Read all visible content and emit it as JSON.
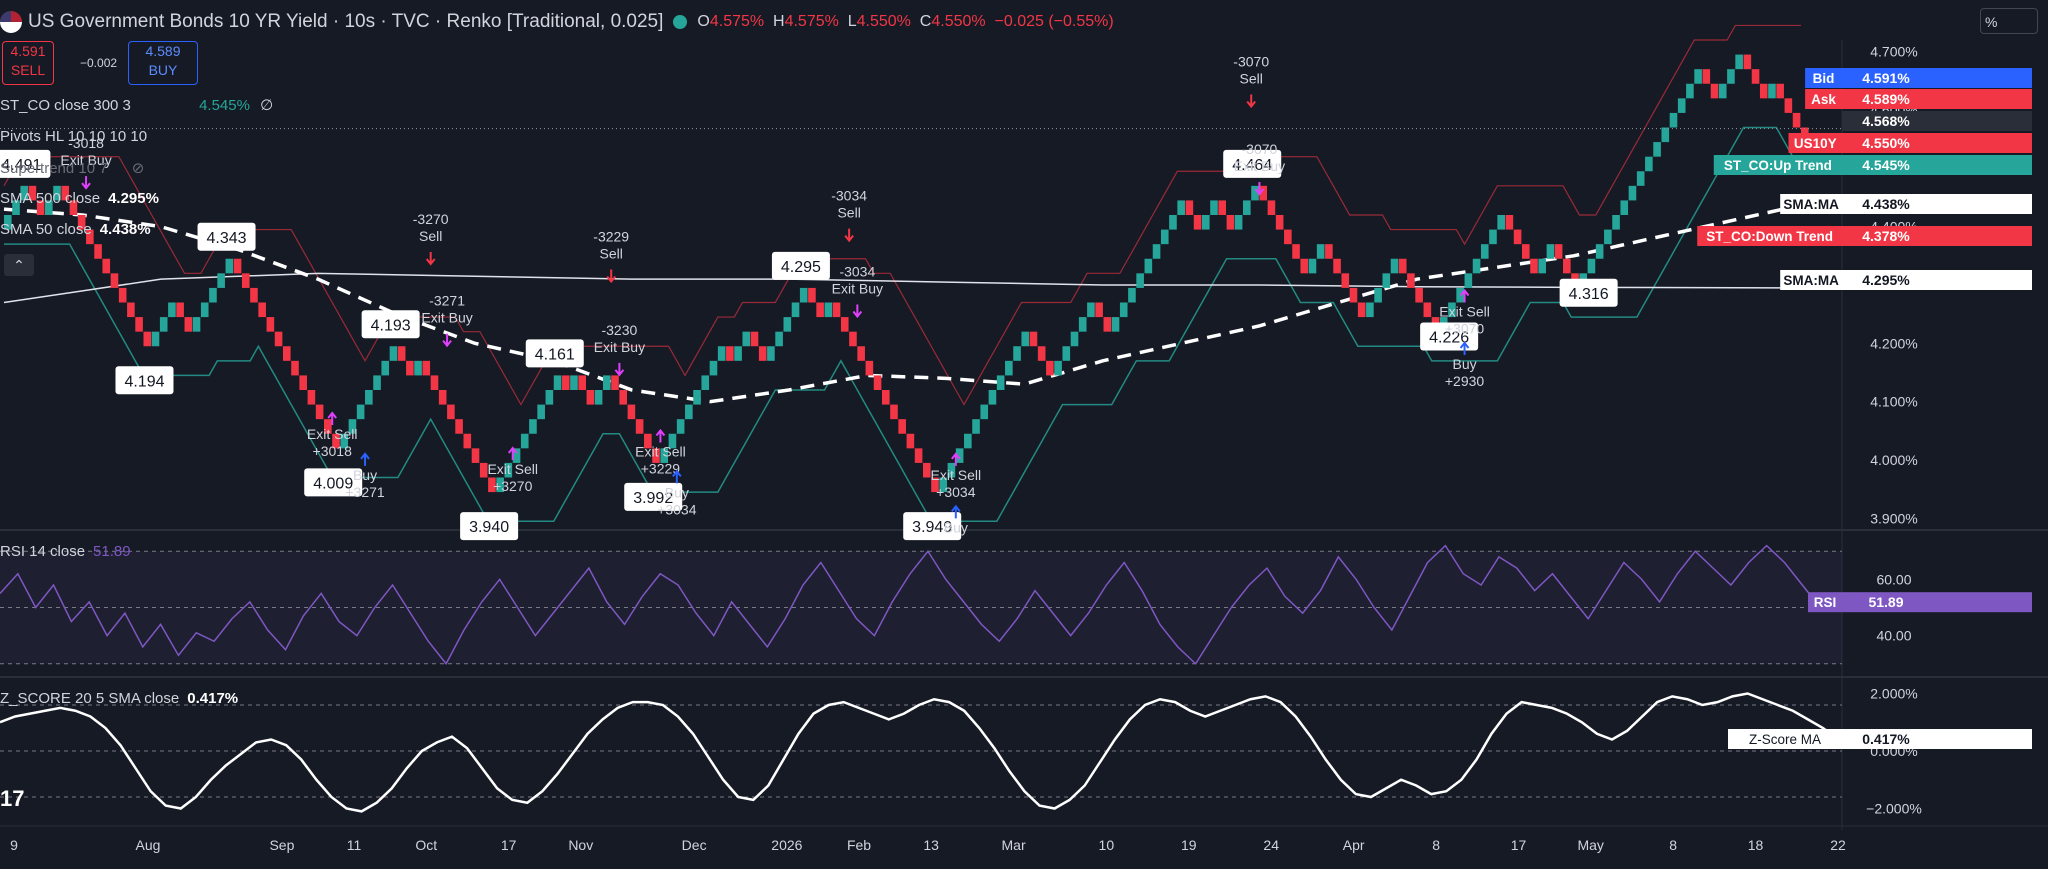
{
  "header": {
    "title": "US Government Bonds 10 YR Yield · 10s · TVC · Renko [Traditional, 0.025]",
    "o_label": "O",
    "o": "4.575%",
    "h_label": "H",
    "h": "4.575%",
    "l_label": "L",
    "l": "4.550%",
    "c_label": "C",
    "c": "4.550%",
    "change": "−0.025 (−0.55%)"
  },
  "trade": {
    "sell_price": "4.591",
    "sell_label": "SELL",
    "spread": "−0.002",
    "buy_price": "4.589",
    "buy_label": "BUY"
  },
  "indicators": {
    "st_co": "ST_CO close 300 3",
    "st_co_value": "4.545%",
    "st_co_extra": "∅",
    "pivots": "Pivots HL 10 10 10 10",
    "supertrend": "Supertrend 10 7",
    "sma500": "SMA 500 close",
    "sma500_value": "4.295%",
    "sma50": "SMA 50 close",
    "sma50_value": "4.438%",
    "rsi": "RSI 14 close",
    "rsi_value": "51.89",
    "zscore": "Z_SCORE 20 5 SMA close",
    "zscore_value": "0.417%"
  },
  "scale_unit": "%",
  "logo": "17",
  "colors": {
    "up": "#26a69a",
    "down": "#f23645",
    "bg": "#161a25",
    "grid": "#2a2e39",
    "rsi": "#7e57c2",
    "blue": "#2962ff",
    "magenta": "#e040fb"
  },
  "chart_data": {
    "type": "renko",
    "main": {
      "ylim": [
        3.88,
        4.72
      ],
      "yticks": [
        "3.900%",
        "4.000%",
        "4.100%",
        "4.200%",
        "4.300%",
        "4.400%",
        "4.500%",
        "4.600%",
        "4.700%"
      ],
      "bricks": [
        4.42,
        4.445,
        4.47,
        4.445,
        4.42,
        4.445,
        4.47,
        4.445,
        4.42,
        4.395,
        4.37,
        4.345,
        4.32,
        4.295,
        4.27,
        4.245,
        4.22,
        4.195,
        4.22,
        4.245,
        4.27,
        4.245,
        4.22,
        4.245,
        4.27,
        4.295,
        4.32,
        4.345,
        4.32,
        4.295,
        4.27,
        4.245,
        4.22,
        4.195,
        4.17,
        4.145,
        4.12,
        4.095,
        4.07,
        4.045,
        4.02,
        4.045,
        4.07,
        4.095,
        4.12,
        4.145,
        4.17,
        4.195,
        4.17,
        4.145,
        4.17,
        4.145,
        4.12,
        4.095,
        4.07,
        4.045,
        4.02,
        3.995,
        3.97,
        3.945,
        3.97,
        3.995,
        4.02,
        4.045,
        4.07,
        4.095,
        4.12,
        4.145,
        4.12,
        4.145,
        4.12,
        4.095,
        4.12,
        4.145,
        4.12,
        4.095,
        4.07,
        4.045,
        4.02,
        3.995,
        4.02,
        4.045,
        4.07,
        4.095,
        4.12,
        4.145,
        4.17,
        4.195,
        4.17,
        4.195,
        4.22,
        4.195,
        4.17,
        4.195,
        4.22,
        4.245,
        4.27,
        4.295,
        4.27,
        4.245,
        4.27,
        4.245,
        4.22,
        4.195,
        4.17,
        4.145,
        4.12,
        4.095,
        4.07,
        4.045,
        4.02,
        3.995,
        3.97,
        3.945,
        3.97,
        3.995,
        4.02,
        4.045,
        4.07,
        4.095,
        4.12,
        4.145,
        4.17,
        4.195,
        4.22,
        4.195,
        4.17,
        4.145,
        4.17,
        4.195,
        4.22,
        4.245,
        4.27,
        4.245,
        4.22,
        4.245,
        4.27,
        4.295,
        4.32,
        4.345,
        4.37,
        4.395,
        4.42,
        4.445,
        4.42,
        4.395,
        4.42,
        4.445,
        4.42,
        4.395,
        4.42,
        4.445,
        4.47,
        4.445,
        4.42,
        4.395,
        4.37,
        4.345,
        4.32,
        4.345,
        4.37,
        4.345,
        4.32,
        4.295,
        4.27,
        4.245,
        4.27,
        4.295,
        4.32,
        4.345,
        4.32,
        4.295,
        4.27,
        4.245,
        4.22,
        4.245,
        4.27,
        4.295,
        4.32,
        4.345,
        4.37,
        4.395,
        4.42,
        4.395,
        4.37,
        4.345,
        4.32,
        4.345,
        4.37,
        4.345,
        4.32,
        4.295,
        4.32,
        4.345,
        4.37,
        4.395,
        4.42,
        4.445,
        4.47,
        4.495,
        4.52,
        4.545,
        4.57,
        4.595,
        4.62,
        4.645,
        4.67,
        4.645,
        4.62,
        4.645,
        4.67,
        4.695,
        4.67,
        4.645,
        4.62,
        4.645,
        4.62,
        4.595,
        4.57,
        4.55
      ],
      "sma500": [
        [
          0,
          4.27
        ],
        [
          10,
          4.29
        ],
        [
          20,
          4.31
        ],
        [
          40,
          4.32
        ],
        [
          60,
          4.315
        ],
        [
          80,
          4.31
        ],
        [
          100,
          4.31
        ],
        [
          120,
          4.305
        ],
        [
          140,
          4.3
        ],
        [
          160,
          4.3
        ],
        [
          180,
          4.297
        ],
        [
          200,
          4.296
        ],
        [
          230,
          4.295
        ]
      ],
      "sma50": [
        [
          0,
          4.43
        ],
        [
          10,
          4.42
        ],
        [
          20,
          4.4
        ],
        [
          30,
          4.36
        ],
        [
          40,
          4.31
        ],
        [
          50,
          4.25
        ],
        [
          60,
          4.2
        ],
        [
          70,
          4.17
        ],
        [
          80,
          4.12
        ],
        [
          90,
          4.1
        ],
        [
          100,
          4.12
        ],
        [
          110,
          4.145
        ],
        [
          120,
          4.14
        ],
        [
          130,
          4.13
        ],
        [
          140,
          4.17
        ],
        [
          150,
          4.2
        ],
        [
          160,
          4.23
        ],
        [
          170,
          4.27
        ],
        [
          180,
          4.31
        ],
        [
          190,
          4.33
        ],
        [
          200,
          4.35
        ],
        [
          210,
          4.38
        ],
        [
          220,
          4.41
        ],
        [
          230,
          4.44
        ]
      ],
      "pivots": [
        {
          "i": 2,
          "v": "4.491",
          "pos": "above"
        },
        {
          "i": 17,
          "v": "4.194",
          "pos": "below"
        },
        {
          "i": 27,
          "v": "4.343",
          "pos": "above"
        },
        {
          "i": 40,
          "v": "4.009",
          "pos": "below"
        },
        {
          "i": 47,
          "v": "4.193",
          "pos": "above"
        },
        {
          "i": 59,
          "v": "3.940",
          "pos": "below"
        },
        {
          "i": 67,
          "v": "4.161",
          "pos": "above"
        },
        {
          "i": 79,
          "v": "3.992",
          "pos": "below"
        },
        {
          "i": 97,
          "v": "4.295",
          "pos": "above"
        },
        {
          "i": 113,
          "v": "3.949",
          "pos": "below"
        },
        {
          "i": 152,
          "v": "4.464",
          "pos": "above"
        },
        {
          "i": 176,
          "v": "4.226",
          "pos": "below"
        },
        {
          "i": 193,
          "v": "4.316",
          "pos": "below"
        }
      ],
      "signals": [
        {
          "i": 10,
          "lines": [
            "-3018",
            "Exit Buy"
          ],
          "side": "top",
          "v": 4.49
        },
        {
          "i": 40,
          "lines": [
            "Exit Sell",
            "+3018"
          ],
          "side": "bottom",
          "v": 4.06
        },
        {
          "i": 44,
          "lines": [
            "Buy",
            "+3271"
          ],
          "side": "bottom",
          "v": 3.99
        },
        {
          "i": 52,
          "lines": [
            "-3270",
            "Sell"
          ],
          "side": "top",
          "v": 4.36
        },
        {
          "i": 54,
          "lines": [
            "-3271",
            "Exit Buy"
          ],
          "side": "top",
          "v": 4.22
        },
        {
          "i": 62,
          "lines": [
            "Exit Sell",
            "+3270"
          ],
          "side": "bottom",
          "v": 4.0
        },
        {
          "i": 74,
          "lines": [
            "-3229",
            "Sell"
          ],
          "side": "top",
          "v": 4.33
        },
        {
          "i": 75,
          "lines": [
            "-3230",
            "Exit Buy"
          ],
          "side": "top",
          "v": 4.17
        },
        {
          "i": 80,
          "lines": [
            "Exit Sell",
            "+3229"
          ],
          "side": "bottom",
          "v": 4.03
        },
        {
          "i": 82,
          "lines": [
            "Buy",
            "+3034"
          ],
          "side": "bottom",
          "v": 3.96
        },
        {
          "i": 103,
          "lines": [
            "-3034",
            "Sell"
          ],
          "side": "top",
          "v": 4.4
        },
        {
          "i": 104,
          "lines": [
            "-3034",
            "Exit Buy"
          ],
          "side": "top",
          "v": 4.27
        },
        {
          "i": 116,
          "lines": [
            "Exit Sell",
            "+3034"
          ],
          "side": "bottom",
          "v": 3.99
        },
        {
          "i": 116,
          "lines": [
            "Buy"
          ],
          "side": "bottom2",
          "v": 3.9
        },
        {
          "i": 152,
          "lines": [
            "-3070",
            "Sell"
          ],
          "side": "top",
          "v": 4.63
        },
        {
          "i": 153,
          "lines": [
            "-3070",
            "Exit Buy"
          ],
          "side": "top",
          "v": 4.48
        },
        {
          "i": 178,
          "lines": [
            "Exit Sell",
            "+3070"
          ],
          "side": "bottom",
          "v": 4.27
        },
        {
          "i": 178,
          "lines": [
            "Buy",
            "+2930"
          ],
          "side": "bottom2",
          "v": 4.18
        }
      ],
      "right_labels": [
        {
          "tag": "Bid",
          "val": "4.591%",
          "v": 4.591,
          "c": "#2962ff"
        },
        {
          "tag": "Ask",
          "val": "4.589%",
          "v": 4.589,
          "c": "#f23645"
        },
        {
          "tag": "",
          "val": "4.568%",
          "v": 4.568,
          "c": "#2a2e39"
        },
        {
          "tag": "US10Y",
          "val": "4.550%",
          "v": 4.55,
          "c": "#f23645"
        },
        {
          "tag": "ST_CO:Up Trend",
          "val": "4.545%",
          "v": 4.545,
          "c": "#26a69a"
        },
        {
          "tag": "SMA:MA",
          "val": "4.438%",
          "v": 4.438,
          "c": "#ffffff"
        },
        {
          "tag": "ST_CO:Down Trend",
          "val": "4.378%",
          "v": 4.378,
          "c": "#f23645"
        },
        {
          "tag": "SMA:MA",
          "val": "4.295%",
          "v": 4.295,
          "c": "#ffffff"
        }
      ]
    },
    "rsi": {
      "ylim": [
        26,
        74
      ],
      "yticks": [
        "40.00",
        "60.00"
      ],
      "bands": [
        30,
        50,
        70
      ],
      "label": "RSI",
      "values": [
        55,
        62,
        50,
        58,
        45,
        52,
        40,
        48,
        36,
        44,
        33,
        41,
        38,
        46,
        52,
        42,
        35,
        47,
        55,
        45,
        40,
        50,
        58,
        48,
        38,
        30,
        42,
        52,
        60,
        50,
        40,
        48,
        56,
        64,
        52,
        44,
        54,
        62,
        58,
        48,
        40,
        52,
        44,
        36,
        46,
        58,
        66,
        56,
        46,
        40,
        52,
        62,
        70,
        60,
        52,
        44,
        38,
        46,
        56,
        48,
        40,
        48,
        58,
        66,
        56,
        44,
        36,
        30,
        40,
        50,
        58,
        64,
        54,
        48,
        56,
        68,
        60,
        50,
        42,
        54,
        66,
        72,
        62,
        58,
        68,
        64,
        56,
        62,
        54,
        46,
        56,
        66,
        60,
        52,
        62,
        70,
        64,
        58,
        66,
        72,
        66,
        58,
        50,
        52
      ],
      "last": "51.89"
    },
    "zscore": {
      "ylim": [
        -2.4,
        2.4
      ],
      "yticks": [
        "2.000%",
        "0.000%",
        "−2.000%"
      ],
      "bands": [
        1.6,
        0,
        -1.6
      ],
      "label": "Z-Score MA",
      "values": [
        1.0,
        1.2,
        1.3,
        1.4,
        1.5,
        1.4,
        1.2,
        0.8,
        0.2,
        -0.6,
        -1.4,
        -1.9,
        -2.0,
        -1.6,
        -1.0,
        -0.5,
        -0.1,
        0.3,
        0.4,
        0.2,
        -0.3,
        -1.0,
        -1.6,
        -2.0,
        -2.1,
        -1.8,
        -1.3,
        -0.6,
        0.0,
        0.3,
        0.5,
        0.1,
        -0.6,
        -1.3,
        -1.7,
        -1.8,
        -1.4,
        -0.8,
        -0.1,
        0.6,
        1.1,
        1.5,
        1.7,
        1.7,
        1.6,
        1.2,
        0.6,
        -0.2,
        -1.0,
        -1.6,
        -1.7,
        -1.2,
        -0.3,
        0.6,
        1.3,
        1.6,
        1.7,
        1.5,
        1.3,
        1.1,
        1.3,
        1.6,
        1.8,
        1.7,
        1.4,
        0.8,
        0.1,
        -0.7,
        -1.4,
        -1.9,
        -2.0,
        -1.7,
        -1.2,
        -0.4,
        0.4,
        1.1,
        1.6,
        1.8,
        1.7,
        1.4,
        1.2,
        1.4,
        1.6,
        1.8,
        1.9,
        1.7,
        1.2,
        0.5,
        -0.3,
        -1.0,
        -1.5,
        -1.6,
        -1.3,
        -1.0,
        -1.2,
        -1.5,
        -1.4,
        -1.0,
        -0.3,
        0.6,
        1.3,
        1.7,
        1.6,
        1.5,
        1.3,
        1.0,
        0.6,
        0.4,
        0.7,
        1.2,
        1.7,
        1.9,
        1.8,
        1.6,
        1.7,
        1.9,
        2.0,
        1.8,
        1.6,
        1.4,
        1.1,
        0.8,
        0.42
      ],
      "last": "0.417%"
    },
    "xticks": [
      {
        "i": 0,
        "label": "9"
      },
      {
        "i": 13,
        "label": "Aug"
      },
      {
        "i": 26,
        "label": "Sep"
      },
      {
        "i": 33,
        "label": "11"
      },
      {
        "i": 40,
        "label": "Oct"
      },
      {
        "i": 48,
        "label": "17"
      },
      {
        "i": 55,
        "label": "Nov"
      },
      {
        "i": 66,
        "label": "Dec"
      },
      {
        "i": 75,
        "label": "2026"
      },
      {
        "i": 82,
        "label": "Feb"
      },
      {
        "i": 89,
        "label": "13"
      },
      {
        "i": 97,
        "label": "Mar"
      },
      {
        "i": 106,
        "label": "10"
      },
      {
        "i": 114,
        "label": "19"
      },
      {
        "i": 122,
        "label": "24"
      },
      {
        "i": 130,
        "label": "Apr"
      },
      {
        "i": 138,
        "label": "8"
      },
      {
        "i": 146,
        "label": "17"
      },
      {
        "i": 153,
        "label": "May"
      },
      {
        "i": 161,
        "label": "8"
      },
      {
        "i": 169,
        "label": "18"
      },
      {
        "i": 177,
        "label": "22"
      }
    ]
  }
}
